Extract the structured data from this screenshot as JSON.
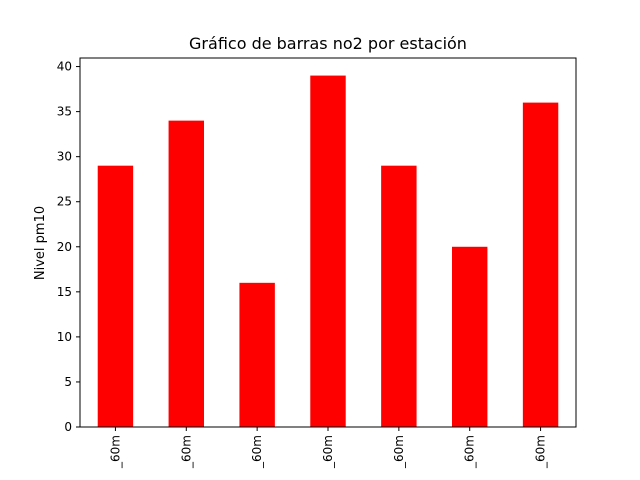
{
  "chart_data": {
    "type": "bar",
    "title": "Gráfico de barras no2 por estación",
    "xlabel": "",
    "ylabel": "Nivel pm10",
    "categories": [
      "_60m",
      "_60m",
      "_60m",
      "_60m",
      "_60m",
      "_60m",
      "_60m"
    ],
    "values": [
      29,
      34,
      16,
      39,
      29,
      20,
      36
    ],
    "ylim": [
      0,
      40.95
    ],
    "yticks": [
      0,
      5,
      10,
      15,
      20,
      25,
      30,
      35,
      40
    ],
    "bar_color": "#ff0000",
    "grid": false,
    "legend": "none"
  }
}
